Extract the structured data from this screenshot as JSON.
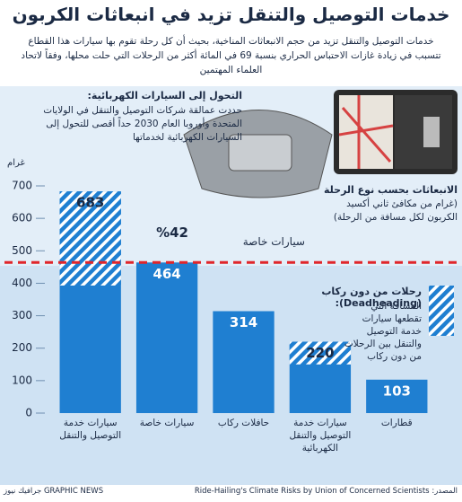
{
  "chart_data": {
    "type": "bar",
    "title": "خدمات التوصيل والتنقل تزيد في انبعاثات الكربون",
    "subtitle": "خدمات التوصيل والتنقل تزيد من حجم الانبعاثات المناخية، بحيث أن كل رحلة تقوم بها سيارات هذا القطاع تتسبب في زيادة غازات الاحتباس الحراري بنسبة 69 في المائة أكثر من الرحلات التي حلت محلها، وفقاً لاتحاد العلماء المهتمين",
    "ev_heading": "التحول إلى السيارات الكهربائية:",
    "ev_text": "حددت عمالقة شركات التوصيل والتنقل في الولايات المتحدة وأوروبا العام 2030 حداً أقصى للتحول إلى السيارات الكهربائية لخدماتها",
    "axis_heading": "الانبعاثات بحسب نوع الرحلة",
    "axis_text": "(غرام من مكافئ ثاني أكسيد الكربون لكل مسافة من الرحلة)",
    "y_unit": "غرام",
    "categories": [
      "سيارات خدمة التوصيل والتنقل",
      "سيارات خاصة",
      "حافلات ركاب",
      "سيارات خدمة التوصيل والتنقل الكهربائية",
      "قطارات"
    ],
    "values": [
      683,
      464,
      314,
      220,
      103
    ],
    "color": "#1f7fd1",
    "deadheading": {
      "name": "رحلات من دون ركاب (Deadheading):",
      "description": "المسافة التي تقطعها سيارات خدمة التوصيل والتنقل بين الرحلات من دون ركاب",
      "values": [
        290,
        null,
        null,
        70,
        null
      ]
    },
    "reference": {
      "value": 464,
      "label": "سيارات خاصة",
      "color": "#e0262b"
    },
    "annotation": "%42",
    "ylim": [
      0,
      700
    ],
    "yticks": [
      0,
      100,
      200,
      300,
      400,
      500,
      600,
      700
    ],
    "source": "المصدر: Ride-Hailing's Climate Risks by Union of Concerned Scientists",
    "credit": "GRAPHIC NEWS جرافيك نيوز"
  }
}
